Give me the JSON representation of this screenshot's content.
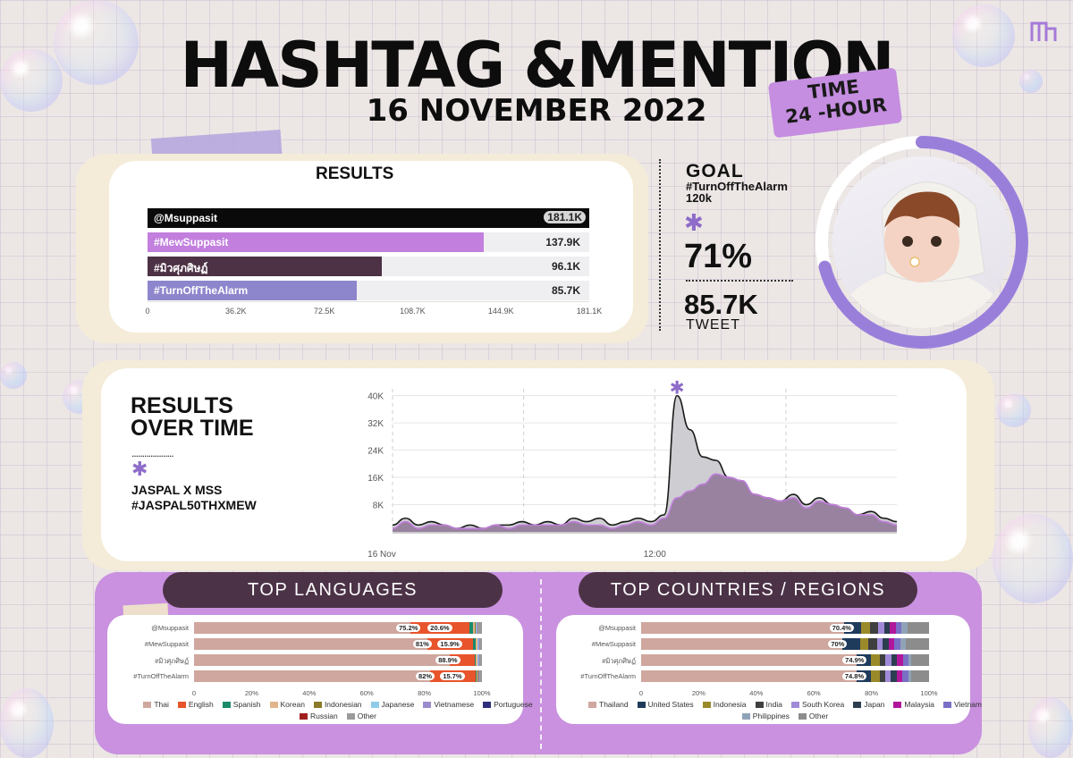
{
  "header": {
    "title": "HASHTAG &MENTION",
    "date": "16 NOVEMBER 2022",
    "time_label": "TIME",
    "time_value": "24 -HOUR",
    "logo": "brand-monogram-icon"
  },
  "results": {
    "title": "RESULTS",
    "ticks": [
      "0",
      "36.2K",
      "72.5K",
      "108.7K",
      "144.9K",
      "181.1K"
    ],
    "items": [
      {
        "name": "@Msuppasit",
        "label": "181.1K",
        "value": 181.1,
        "color": "#0a0a0a"
      },
      {
        "name": "#MewSuppasit",
        "label": "137.9K",
        "value": 137.9,
        "color": "#c27fdd"
      },
      {
        "name": "#มิวศุภศิษฏ์",
        "label": "96.1K",
        "value": 96.1,
        "color": "#4d3145"
      },
      {
        "name": "#TurnOffTheAlarm",
        "label": "85.7K",
        "value": 85.7,
        "color": "#8e86cc"
      }
    ]
  },
  "goal": {
    "title": "GOAL",
    "hashtag": "#TurnOffTheAlarm",
    "target": "120k",
    "percent": "71%",
    "progress": 0.71,
    "count": "85.7K",
    "count_label": "TWEET",
    "ring_color": "#9a7fda",
    "star": "✱"
  },
  "over_time": {
    "title_line1": "RESULTS",
    "title_line2": "OVER TIME",
    "dots": "....................",
    "star": "✱",
    "line1": "JASPAL X MSS",
    "line2": "#JASPAL50THXMEW"
  },
  "chart_data": [
    {
      "type": "area",
      "x_ticks": [
        "16 Nov",
        "12:00"
      ],
      "y_ticks": [
        "8K",
        "16K",
        "24K",
        "32K",
        "40K"
      ],
      "ylim": [
        0,
        42
      ],
      "series": [
        {
          "color": "#1a1a1a",
          "fill": "#c9c9cd",
          "values": [
            2,
            4,
            2,
            3,
            2,
            1,
            2,
            1,
            2,
            2,
            3,
            2,
            3,
            2,
            4,
            3,
            4,
            2,
            3,
            4,
            3,
            5,
            40,
            30,
            22,
            21,
            16,
            15,
            11,
            10,
            9,
            11,
            8,
            10,
            8,
            7,
            5,
            6,
            4,
            3
          ]
        },
        {
          "color": "#c27fdd",
          "fill": "#8f7398",
          "values": [
            1,
            3,
            1,
            2,
            2,
            1,
            1,
            1,
            2,
            1,
            2,
            2,
            2,
            2,
            3,
            2,
            2,
            1,
            2,
            3,
            2,
            4,
            10,
            12,
            14,
            17,
            16,
            15,
            11,
            10,
            9,
            10,
            7,
            9,
            8,
            7,
            5,
            5,
            3,
            2
          ]
        }
      ]
    },
    {
      "type": "bar",
      "title": "TOP LANGUAGES",
      "categories": [
        "@Msuppasit",
        "#MewSuppasit",
        "#มิวศุภศิษฏ์",
        "#TurnOffTheAlarm"
      ],
      "ticks": [
        "0",
        "20%",
        "40%",
        "60%",
        "80%",
        "100%"
      ],
      "legend": [
        {
          "name": "Thai",
          "color": "#cfa79e"
        },
        {
          "name": "English",
          "color": "#e8542b"
        },
        {
          "name": "Spanish",
          "color": "#1b8a6b"
        },
        {
          "name": "Korean",
          "color": "#e3b48a"
        },
        {
          "name": "Indonesian",
          "color": "#8a7a2a"
        },
        {
          "name": "Japanese",
          "color": "#8fcbe8"
        },
        {
          "name": "Vietnamese",
          "color": "#9a8ccc"
        },
        {
          "name": "Portuguese",
          "color": "#2e2e7a"
        },
        {
          "name": "Russian",
          "color": "#a01e1e"
        },
        {
          "name": "Other",
          "color": "#9a9a9a"
        }
      ],
      "rows": [
        {
          "labels": [
            "75.2%",
            "20.6%"
          ],
          "values": [
            75.2,
            20.6,
            1.2,
            0.5,
            0.4,
            0.3,
            0.3,
            0,
            0,
            1.5
          ]
        },
        {
          "labels": [
            "81%",
            "15.9%"
          ],
          "values": [
            81,
            15.9,
            1,
            0.4,
            0.3,
            0.2,
            0.2,
            0,
            0,
            1
          ]
        },
        {
          "labels": [
            "88.9%"
          ],
          "values": [
            88.9,
            8.5,
            0.5,
            0.4,
            0.3,
            0.2,
            0.2,
            0,
            0,
            1
          ]
        },
        {
          "labels": [
            "82%",
            "15.7%"
          ],
          "values": [
            82,
            15.7,
            0.5,
            0.3,
            0.2,
            0.2,
            0.1,
            0,
            0,
            1
          ]
        }
      ]
    },
    {
      "type": "bar",
      "title": "TOP COUNTRIES / REGIONS",
      "categories": [
        "@Msuppasit",
        "#MewSuppasit",
        "#มิวศุภศิษฏ์",
        "#TurnOffTheAlarm"
      ],
      "ticks": [
        "0",
        "20%",
        "40%",
        "60%",
        "80%",
        "100%"
      ],
      "legend": [
        {
          "name": "Thailand",
          "color": "#cfa79e"
        },
        {
          "name": "United States",
          "color": "#1f3b5c"
        },
        {
          "name": "Indonesia",
          "color": "#9a8a2a"
        },
        {
          "name": "India",
          "color": "#3f3f3f"
        },
        {
          "name": "South Korea",
          "color": "#a08ad8"
        },
        {
          "name": "Japan",
          "color": "#2c3e50"
        },
        {
          "name": "Malaysia",
          "color": "#b0179a"
        },
        {
          "name": "Vietnam",
          "color": "#7a6fc6"
        },
        {
          "name": "Philippines",
          "color": "#8fa3b8"
        },
        {
          "name": "Other",
          "color": "#8c8c8c"
        }
      ],
      "rows": [
        {
          "labels": [
            "70.4%"
          ],
          "values": [
            70.4,
            6,
            3,
            3,
            2,
            2,
            2,
            2,
            2,
            7.6
          ]
        },
        {
          "labels": [
            "70%"
          ],
          "values": [
            70,
            6,
            3,
            3,
            2,
            2,
            2,
            2,
            2,
            8
          ]
        },
        {
          "labels": [
            "74.9%"
          ],
          "values": [
            74.9,
            5,
            3,
            2,
            2,
            2,
            2,
            2,
            1,
            6.1
          ]
        },
        {
          "labels": [
            "74.8%"
          ],
          "values": [
            74.8,
            5,
            3,
            2,
            2,
            2,
            2,
            2,
            1,
            6.2
          ]
        }
      ]
    }
  ]
}
